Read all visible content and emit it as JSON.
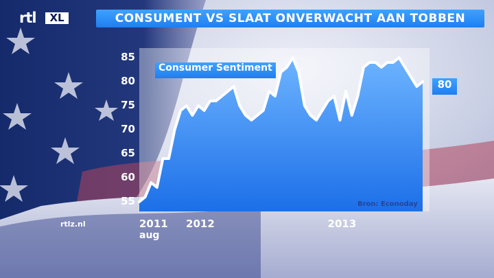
{
  "broadcaster": {
    "logo_text": "rtl",
    "logo_badge": "XL"
  },
  "headline": "CONSUMENT VS SLAAT ONVERWACHT AAN TOBBEN",
  "site": "rtlz.nl",
  "source_note": "Bron: Econoday",
  "chart_data": {
    "type": "area",
    "title": "Consumer Sentiment",
    "ylim": [
      53,
      87
    ],
    "yticks": [
      55,
      60,
      65,
      70,
      75,
      80,
      85
    ],
    "xlim": [
      0,
      24
    ],
    "xtick_labels": [
      {
        "x": 0,
        "label": "2011",
        "sublabel": "aug"
      },
      {
        "x": 5,
        "label": "2012"
      },
      {
        "x": 17,
        "label": "2013"
      }
    ],
    "last_value_label": "80",
    "series": [
      {
        "x": [
          0,
          0.5,
          1,
          1.5,
          2,
          2.5,
          3,
          3.5,
          4,
          4.5,
          5,
          5.5,
          6,
          6.5,
          7,
          7.5,
          8,
          8.5,
          9,
          9.5,
          10,
          10.5,
          11,
          11.5,
          12,
          12.5,
          13,
          13.5,
          14,
          14.5,
          15,
          15.5,
          16,
          16.5,
          17,
          17.5,
          18,
          18.5,
          19,
          19.5,
          20,
          20.5,
          21,
          21.5,
          22,
          22.5,
          23,
          23.5,
          24
        ],
        "values": [
          55,
          56,
          59,
          58,
          64,
          64,
          70,
          74,
          75,
          73,
          75,
          74,
          76,
          76,
          77,
          78,
          79,
          75,
          73,
          72,
          73,
          74,
          78,
          77,
          82,
          83,
          85,
          82,
          75,
          73,
          72,
          74,
          76,
          77,
          72,
          78,
          73,
          77,
          83,
          84,
          84,
          83,
          84,
          84,
          85,
          83,
          81,
          79,
          80
        ]
      }
    ],
    "colors": {
      "line": "#ffffff",
      "fill_top": "#6db4ff",
      "fill_bottom": "#1c6fe8",
      "accent": "#2a8cf8"
    }
  }
}
